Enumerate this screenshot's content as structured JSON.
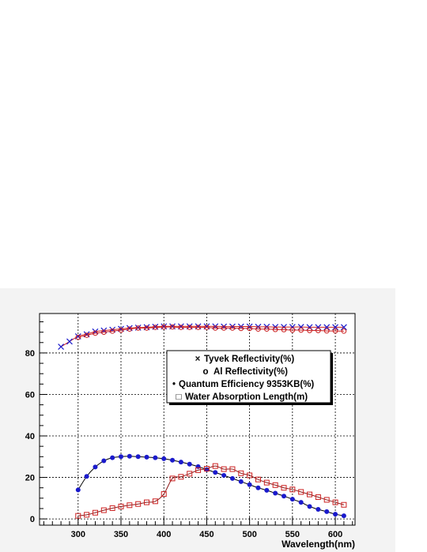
{
  "chart_data": {
    "type": "scatter",
    "title": "",
    "xlabel": "Wavelength(nm)",
    "ylabel": "",
    "xlim": [
      255,
      623
    ],
    "ylim": [
      -3,
      99
    ],
    "x_ticks": [
      300,
      350,
      400,
      450,
      500,
      550,
      600
    ],
    "y_ticks": [
      0,
      20,
      40,
      60,
      80
    ],
    "x_minor_step": 10,
    "y_minor_step": 5,
    "grid": true,
    "legend_position": "center-right",
    "legend_marker_labels": [
      "×",
      "o",
      "•",
      "□"
    ],
    "series": [
      {
        "name": "Tyvek Reflectivity(%)",
        "marker": "x-icon",
        "color": "#1a1acc",
        "line_color": "#cc2222",
        "x": [
          280,
          290,
          300,
          310,
          320,
          330,
          340,
          350,
          360,
          370,
          380,
          390,
          400,
          410,
          420,
          430,
          440,
          450,
          460,
          470,
          480,
          490,
          500,
          510,
          520,
          530,
          540,
          550,
          560,
          570,
          580,
          590,
          600,
          610
        ],
        "y": [
          83,
          85.5,
          88,
          89,
          90.3,
          90.8,
          91.2,
          91.6,
          92,
          92.2,
          92.4,
          92.6,
          92.8,
          92.8,
          92.8,
          92.8,
          92.8,
          92.8,
          92.8,
          92.7,
          92.7,
          92.7,
          92.7,
          92.6,
          92.6,
          92.5,
          92.5,
          92.5,
          92.5,
          92.4,
          92.4,
          92.4,
          92.4,
          92.4
        ]
      },
      {
        "name": "Al Reflectivity(%)",
        "marker": "open-circle-icon",
        "color": "#cc2222",
        "line_color": "#cc2222",
        "x": [
          300,
          310,
          320,
          330,
          340,
          350,
          360,
          370,
          380,
          390,
          400,
          410,
          420,
          430,
          440,
          450,
          460,
          470,
          480,
          490,
          500,
          510,
          520,
          530,
          540,
          550,
          560,
          570,
          580,
          590,
          600,
          610
        ],
        "y": [
          87.5,
          88.5,
          89.5,
          90,
          90.5,
          91,
          91.5,
          92,
          92,
          92.3,
          92.5,
          92.5,
          92.3,
          92.3,
          92.3,
          92.3,
          92,
          92,
          92,
          91.8,
          91.8,
          91.5,
          91.5,
          91.3,
          91.2,
          91,
          91,
          90.8,
          90.8,
          90.6,
          90.6,
          90.5
        ]
      },
      {
        "name": "Quantum Efficiency 9353KB(%)",
        "marker": "filled-circle-icon",
        "color": "#1a1acc",
        "line_color": "#000000",
        "x": [
          300,
          310,
          320,
          330,
          340,
          350,
          360,
          370,
          380,
          390,
          400,
          410,
          420,
          430,
          440,
          450,
          460,
          470,
          480,
          490,
          500,
          510,
          520,
          530,
          540,
          550,
          560,
          570,
          580,
          590,
          600,
          610
        ],
        "y": [
          14,
          20.5,
          25,
          28,
          29.5,
          30,
          30.2,
          30,
          29.8,
          29.5,
          29,
          28.3,
          27.4,
          26.4,
          25.2,
          23.8,
          22.4,
          21,
          19.5,
          18,
          16.5,
          15,
          13.8,
          12.4,
          11,
          9.5,
          8,
          6,
          4.6,
          3.5,
          2.3,
          1.5
        ]
      },
      {
        "name": "Water Absorption Length(m)",
        "marker": "open-square-icon",
        "color": "#cc2222",
        "line_color": "#8b1a1a",
        "x": [
          300,
          310,
          320,
          330,
          340,
          350,
          360,
          370,
          380,
          390,
          400,
          410,
          420,
          430,
          440,
          450,
          460,
          470,
          480,
          490,
          500,
          510,
          520,
          530,
          540,
          550,
          560,
          570,
          580,
          590,
          600,
          610
        ],
        "y": [
          1.5,
          2,
          3,
          4.2,
          5.2,
          6,
          6.6,
          7.2,
          8,
          8.5,
          12,
          19.5,
          20.3,
          21.8,
          23.5,
          24.2,
          25.5,
          24,
          24,
          22,
          21,
          19,
          17.5,
          16.3,
          15,
          14.2,
          13,
          11.8,
          10.5,
          9.2,
          8,
          6.8
        ]
      }
    ]
  }
}
